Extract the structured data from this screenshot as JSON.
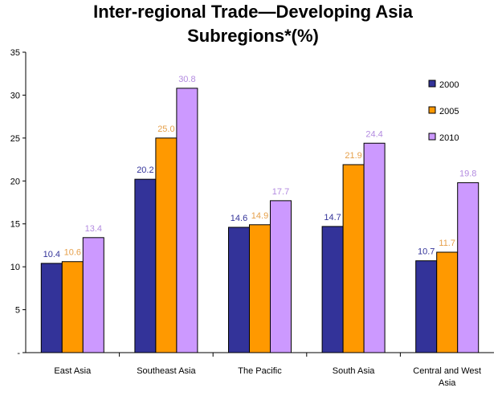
{
  "chart_data": {
    "type": "bar",
    "title_lines": [
      "Inter-regional Trade—Developing Asia",
      "Subregions*(%)"
    ],
    "categories": [
      "East Asia",
      "Southeast Asia",
      "The Pacific",
      "South Asia",
      "Central and West Asia"
    ],
    "series": [
      {
        "name": "2000",
        "color": "#333399",
        "label_color": "#333399",
        "values": [
          10.4,
          20.2,
          14.6,
          14.7,
          10.7
        ]
      },
      {
        "name": "2005",
        "color": "#FF9900",
        "label_color": "#E6A04A",
        "values": [
          10.6,
          25.0,
          14.9,
          21.9,
          11.7
        ]
      },
      {
        "name": "2010",
        "color": "#CC99FF",
        "label_color": "#B38BE0",
        "values": [
          13.4,
          30.8,
          17.7,
          24.4,
          19.8
        ]
      }
    ],
    "y_ticks": [
      "-",
      "5",
      "10",
      "15",
      "20",
      "25",
      "30",
      "35"
    ],
    "ylim": [
      0,
      35
    ],
    "grid": false,
    "legend_position": "right"
  }
}
